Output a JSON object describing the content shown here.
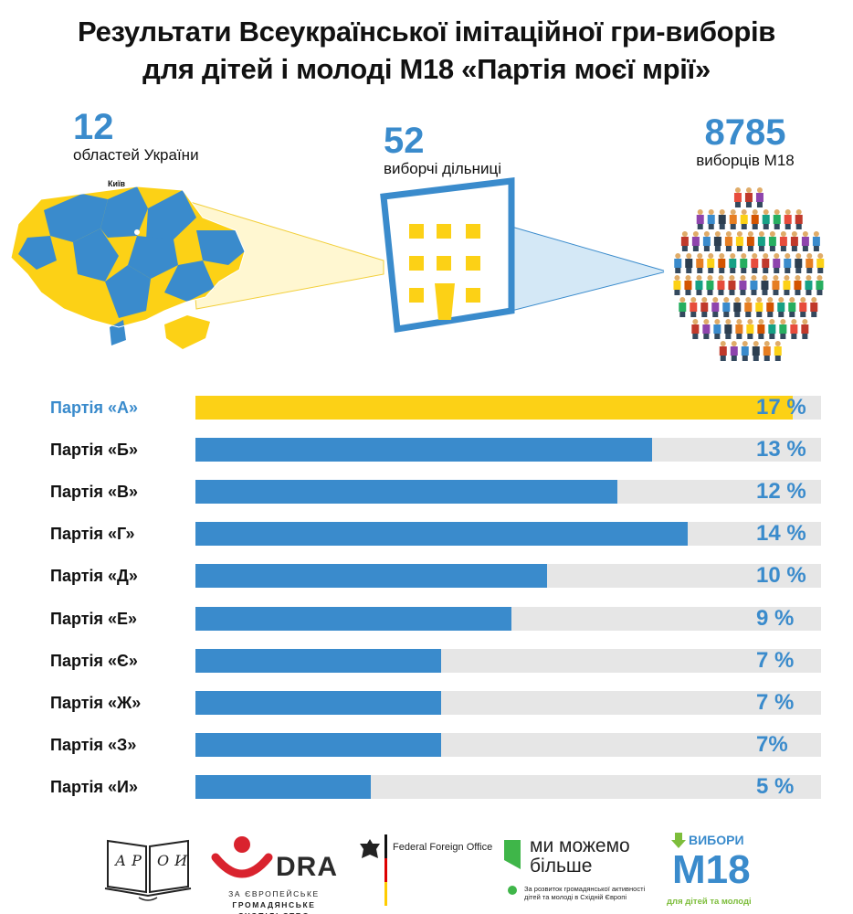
{
  "title_line1": "Результати Всеукраїнської імітаційної гри-виборів",
  "title_line2": "для дітей і молоді М18  «Партія моєї мрії»",
  "stats": {
    "regions": {
      "number": "12",
      "label": "областей України"
    },
    "stations": {
      "number": "52",
      "label": "виборчі дільниці"
    },
    "voters": {
      "number": "8785",
      "label": "виборців М18"
    }
  },
  "map": {
    "city_label": "Київ"
  },
  "colors": {
    "blue": "#3a8bcc",
    "yellow": "#fcd116",
    "track": "#e6e6e6"
  },
  "chart_data": {
    "type": "bar",
    "orientation": "horizontal",
    "categories": [
      "Партія «А»",
      "Партія «Б»",
      "Партія «В»",
      "Партія «Г»",
      "Партія «Д»",
      "Партія «Е»",
      "Партія «Є»",
      "Партія «Ж»",
      "Партія «З»",
      "Партія «И»"
    ],
    "values": [
      17,
      13,
      12,
      14,
      10,
      9,
      7,
      7,
      7,
      5
    ],
    "value_labels": [
      "17 %",
      "13 %",
      "12 %",
      "14 %",
      "10 %",
      "9 %",
      "7 %",
      "7 %",
      "7%",
      "5 %"
    ],
    "xlim": [
      0,
      17.8
    ],
    "highlight_index": 0
  },
  "logos": {
    "aroi": {
      "text": "АР ОИ",
      "icon": "open-book-icon"
    },
    "dra": {
      "text": "DRA",
      "sub_line1": "ЗА ЄВРОПЕЙСЬКЕ",
      "sub_line2": "ГРОМАДЯНСЬКЕ СУСПІЛЬСТВО"
    },
    "ffo": {
      "text": "Federal Foreign Office",
      "icon": "eagle-icon"
    },
    "mm": {
      "line1": "ми можемо",
      "line2": "більше",
      "sub_line1": "За розвиток громадянської активності",
      "sub_line2": "дітей та молоді в Східній Європі"
    },
    "m18": {
      "top": "ВИБОРИ",
      "big": "М18",
      "bottom": "для дітей та молоді"
    }
  }
}
